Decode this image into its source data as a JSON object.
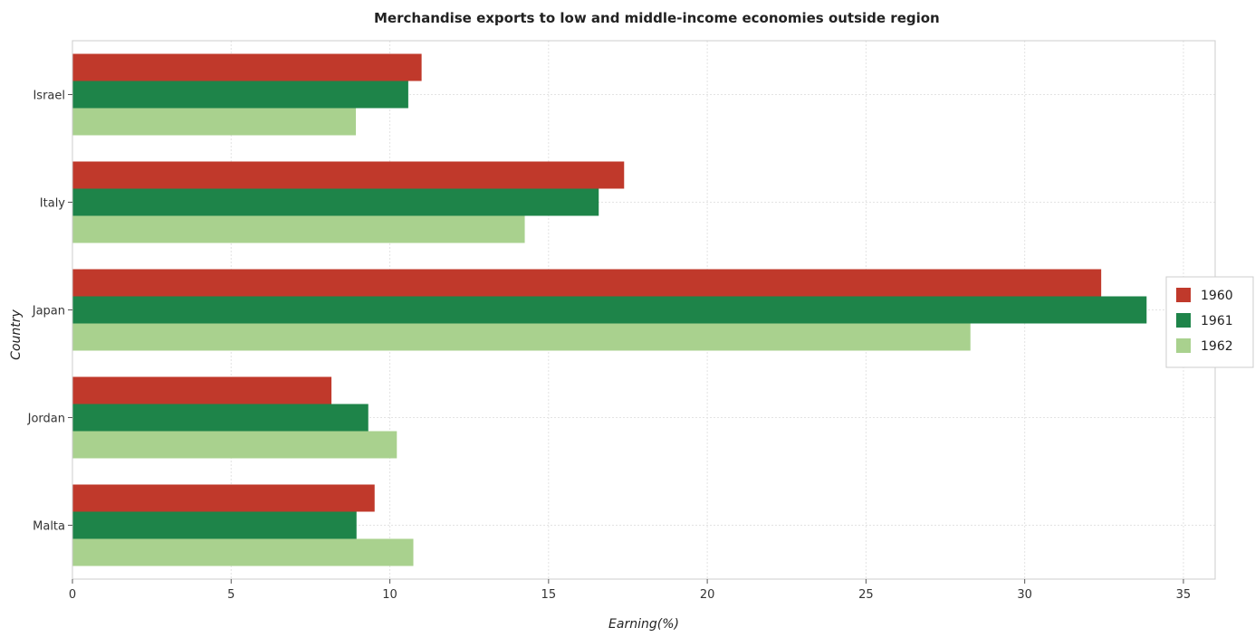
{
  "chart_data": {
    "type": "bar",
    "orientation": "horizontal",
    "title": "Merchandise exports to low and middle-income economies outside region",
    "xlabel": "Earning(%)",
    "ylabel": "Country",
    "categories": [
      "Israel",
      "Italy",
      "Japan",
      "Jordan",
      "Malta"
    ],
    "series": [
      {
        "name": "1960",
        "color": "#c0392b",
        "values": [
          11.0,
          17.38,
          32.41,
          8.16,
          9.52
        ]
      },
      {
        "name": "1961",
        "color": "#1e8449",
        "values": [
          10.58,
          16.58,
          33.84,
          9.32,
          8.95
        ]
      },
      {
        "name": "1962",
        "color": "#a9d18e",
        "values": [
          8.93,
          14.25,
          28.29,
          10.22,
          10.74
        ]
      }
    ],
    "xlim": [
      0,
      36
    ],
    "xticks": [
      0,
      5,
      10,
      15,
      20,
      25,
      30,
      35
    ],
    "grid": true,
    "legend_position": "right"
  }
}
